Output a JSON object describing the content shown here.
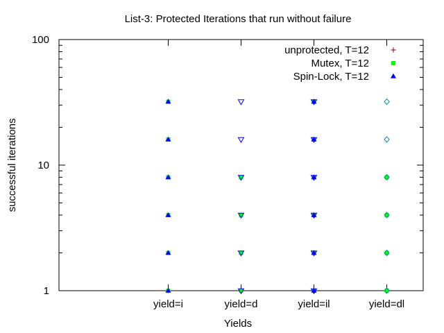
{
  "chart_data": {
    "type": "scatter",
    "title": "List-3: Protected Iterations that run without failure",
    "xlabel": "Yields",
    "ylabel": "successful iterations",
    "yscale": "log",
    "ylim": [
      1,
      100
    ],
    "yticks": [
      {
        "value": 1,
        "label": "1"
      },
      {
        "value": 10,
        "label": "10"
      },
      {
        "value": 100,
        "label": "100"
      }
    ],
    "categories": [
      "yield=i",
      "yield=d",
      "yield=il",
      "yield=dl"
    ],
    "xlim": [
      -0.5,
      4.5
    ],
    "legend_position": "top-right",
    "grid": false,
    "series": [
      {
        "name": "unprotected, T=12",
        "color": "#8b0000",
        "marker": "plus",
        "points": [
          {
            "x": "yield=i",
            "y": 1
          },
          {
            "x": "yield=d",
            "y": 1
          },
          {
            "x": "yield=il",
            "y": 1
          },
          {
            "x": "yield=dl",
            "y": 1
          }
        ]
      },
      {
        "name": "Mutex, T=12",
        "color": "#00ff00",
        "marker": "square",
        "points": [
          {
            "x": "yield=i",
            "y": 1
          },
          {
            "x": "yield=i",
            "y": 2
          },
          {
            "x": "yield=i",
            "y": 4
          },
          {
            "x": "yield=i",
            "y": 8
          },
          {
            "x": "yield=i",
            "y": 16
          },
          {
            "x": "yield=i",
            "y": 32
          },
          {
            "x": "yield=d",
            "y": 1
          },
          {
            "x": "yield=d",
            "y": 2
          },
          {
            "x": "yield=d",
            "y": 4
          },
          {
            "x": "yield=d",
            "y": 8
          },
          {
            "x": "yield=il",
            "y": 1
          },
          {
            "x": "yield=il",
            "y": 2
          },
          {
            "x": "yield=il",
            "y": 4
          },
          {
            "x": "yield=il",
            "y": 8
          },
          {
            "x": "yield=il",
            "y": 16
          },
          {
            "x": "yield=il",
            "y": 32
          },
          {
            "x": "yield=dl",
            "y": 1
          },
          {
            "x": "yield=dl",
            "y": 2
          },
          {
            "x": "yield=dl",
            "y": 4
          },
          {
            "x": "yield=dl",
            "y": 8
          }
        ]
      },
      {
        "name": "Spin-Lock, T=12",
        "color": "#0000ff",
        "marker": "triangle",
        "points": [
          {
            "x": "yield=i",
            "y": 1
          },
          {
            "x": "yield=i",
            "y": 2
          },
          {
            "x": "yield=i",
            "y": 4
          },
          {
            "x": "yield=i",
            "y": 8
          },
          {
            "x": "yield=i",
            "y": 16
          },
          {
            "x": "yield=i",
            "y": 32
          },
          {
            "x": "yield=il",
            "y": 1
          },
          {
            "x": "yield=il",
            "y": 2
          },
          {
            "x": "yield=il",
            "y": 4
          },
          {
            "x": "yield=il",
            "y": 8
          },
          {
            "x": "yield=il",
            "y": 16
          },
          {
            "x": "yield=il",
            "y": 32
          }
        ]
      },
      {
        "color": "#0000ff",
        "marker": "triangle-down",
        "points": [
          {
            "x": "yield=d",
            "y": 1
          },
          {
            "x": "yield=d",
            "y": 2
          },
          {
            "x": "yield=d",
            "y": 4
          },
          {
            "x": "yield=d",
            "y": 8
          },
          {
            "x": "yield=d",
            "y": 16
          },
          {
            "x": "yield=d",
            "y": 32
          },
          {
            "x": "yield=il",
            "y": 1
          },
          {
            "x": "yield=il",
            "y": 2
          },
          {
            "x": "yield=il",
            "y": 4
          },
          {
            "x": "yield=il",
            "y": 8
          },
          {
            "x": "yield=il",
            "y": 16
          },
          {
            "x": "yield=il",
            "y": 32
          }
        ]
      },
      {
        "color": "#009090",
        "marker": "diamond",
        "points": [
          {
            "x": "yield=dl",
            "y": 1
          },
          {
            "x": "yield=dl",
            "y": 2
          },
          {
            "x": "yield=dl",
            "y": 4
          },
          {
            "x": "yield=dl",
            "y": 8
          },
          {
            "x": "yield=dl",
            "y": 16
          },
          {
            "x": "yield=dl",
            "y": 32
          }
        ]
      }
    ]
  }
}
